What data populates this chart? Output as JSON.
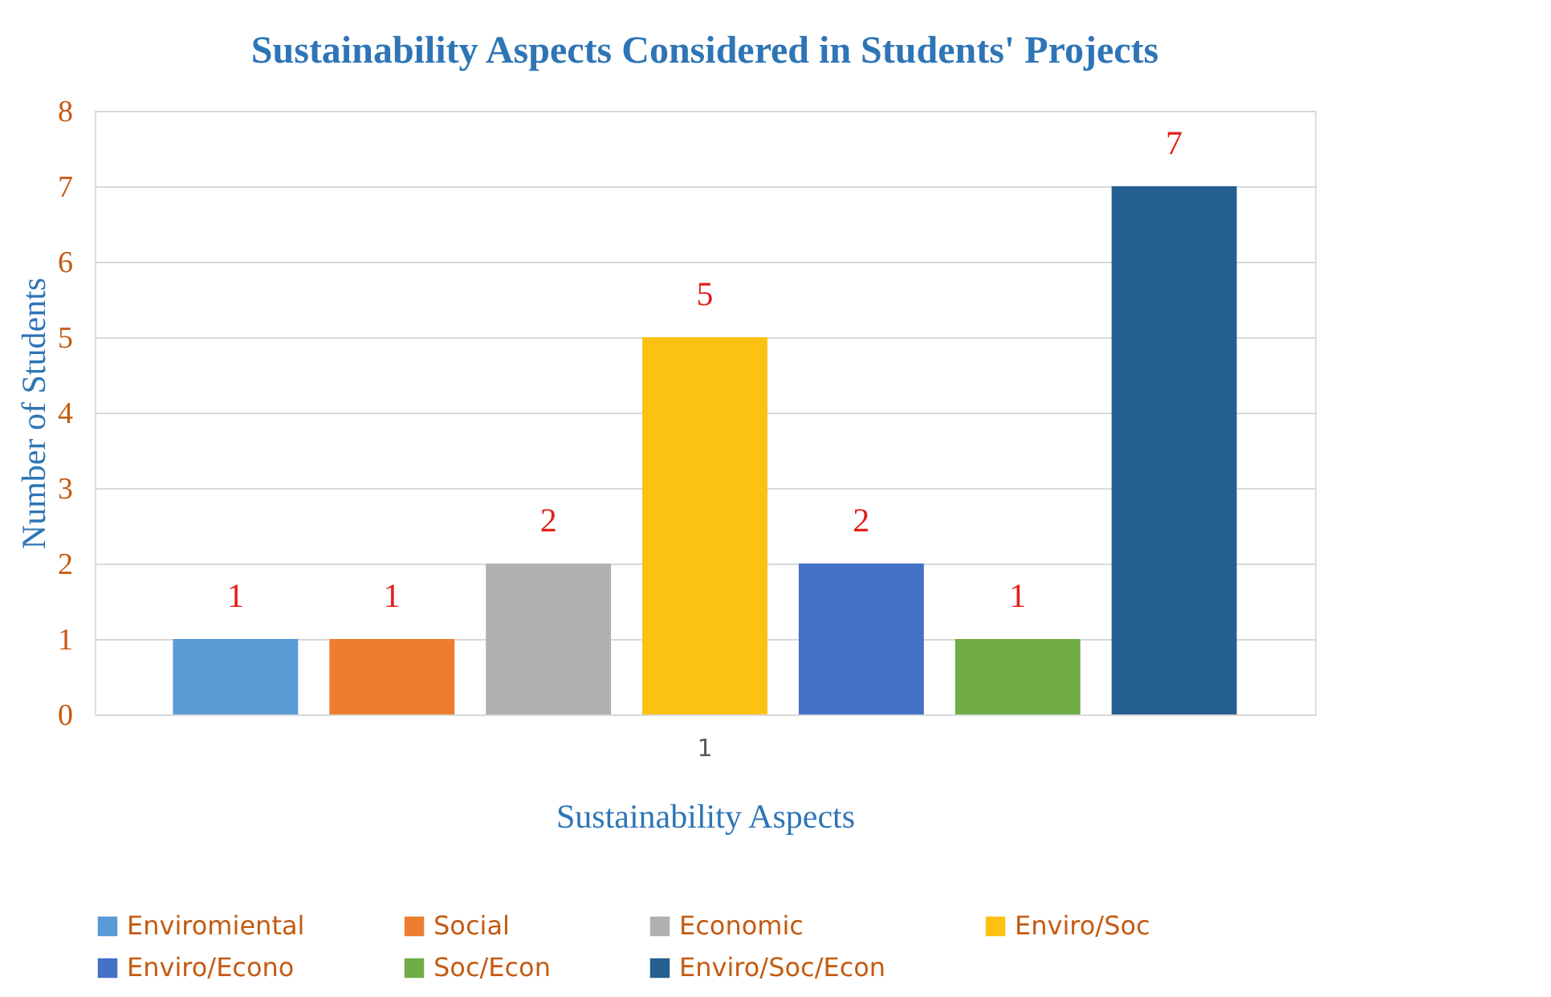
{
  "chart_data": {
    "type": "bar",
    "title": "Sustainability Aspects Considered in Students' Projects",
    "xlabel": "Sustainability Aspects",
    "ylabel": "Number of Students",
    "categories": [
      null,
      null,
      null,
      null,
      null,
      null,
      null
    ],
    "annotations": [
      "1"
    ],
    "series": [
      {
        "name": "Enviromiental",
        "color": "#5b9bd5",
        "values": [
          1,
          null,
          null,
          null,
          null,
          null,
          null
        ]
      },
      {
        "name": "Social",
        "color": "#ed7d31",
        "values": [
          null,
          1,
          null,
          null,
          null,
          null,
          null
        ]
      },
      {
        "name": "Economic",
        "color": "#b0b0b3",
        "values": [
          null,
          null,
          2,
          null,
          null,
          null,
          null
        ]
      },
      {
        "name": "Enviro/Soc",
        "color": "#fbc213",
        "values": [
          null,
          null,
          null,
          5,
          null,
          null,
          null
        ]
      },
      {
        "name": "Enviro/Econo",
        "color": "#4472c4",
        "values": [
          null,
          null,
          null,
          null,
          2,
          null,
          null
        ]
      },
      {
        "name": "Soc/Econ",
        "color": "#70ad47",
        "values": [
          null,
          null,
          null,
          null,
          null,
          1,
          null
        ]
      },
      {
        "name": "Enviro/Soc/Econ",
        "color": "#255e91",
        "values": [
          null,
          null,
          null,
          null,
          null,
          null,
          7
        ]
      }
    ],
    "ylim": [
      0,
      8
    ],
    "yticks": [
      0,
      1,
      2,
      3,
      4,
      5,
      6,
      7,
      8
    ],
    "grid": "y",
    "legend": "bottom",
    "data_labels": true
  }
}
